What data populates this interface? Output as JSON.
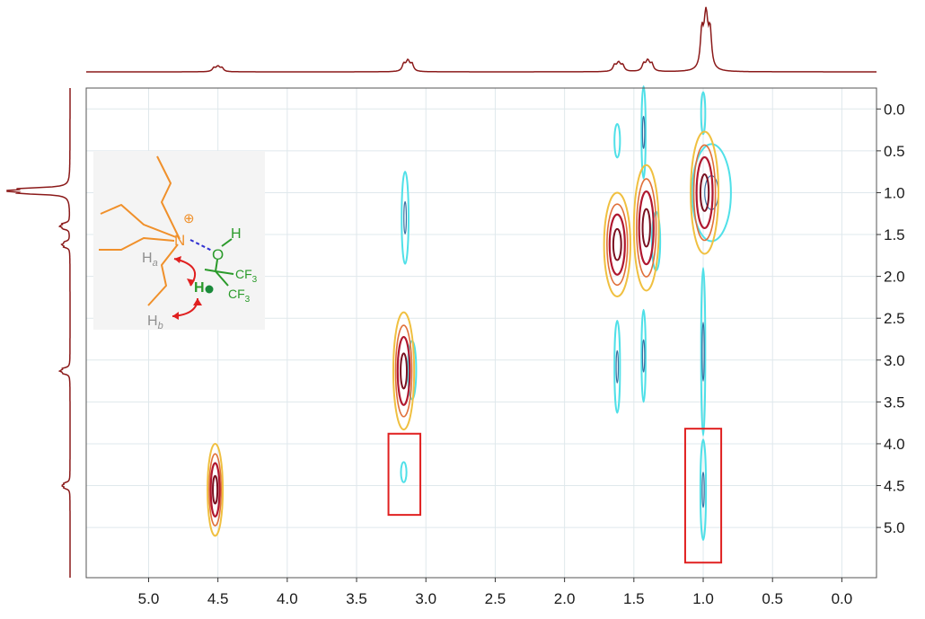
{
  "chart_data": {
    "type": "2D NMR contour plot (NOESY)",
    "title": "",
    "xlabel": "",
    "ylabel": "",
    "x_axis": {
      "reversed": true,
      "range": [
        5.45,
        -0.25
      ],
      "ticks": [
        5.0,
        4.5,
        4.0,
        3.5,
        3.0,
        2.5,
        2.0,
        1.5,
        1.0,
        0.5,
        0.0
      ],
      "tick_labels": [
        "5.0",
        "4.5",
        "4.0",
        "3.5",
        "3.0",
        "2.5",
        "2.0",
        "1.5",
        "1.0",
        "0.5",
        "0.0"
      ]
    },
    "y_axis": {
      "position": "right",
      "range": [
        -0.25,
        5.6
      ],
      "ticks": [
        0.0,
        0.5,
        1.0,
        1.5,
        2.0,
        2.5,
        3.0,
        3.5,
        4.0,
        4.5,
        5.0
      ],
      "tick_labels": [
        "0.0",
        "0.5",
        "1.0",
        "1.5",
        "2.0",
        "2.5",
        "3.0",
        "3.5",
        "4.0",
        "4.5",
        "5.0"
      ]
    },
    "grid": true,
    "projection_1d": {
      "top_peaks_ppm": [
        4.5,
        3.13,
        1.6,
        1.4,
        0.98
      ],
      "left_peaks_ppm": [
        4.5,
        3.13,
        1.6,
        1.4,
        0.98
      ]
    },
    "contours": [
      {
        "x": 4.52,
        "y": 4.55,
        "rx": 0.055,
        "ry": 0.55,
        "sign": "positive"
      },
      {
        "x": 3.16,
        "y": 3.13,
        "rx": 0.075,
        "ry": 0.7,
        "sign": "positive"
      },
      {
        "x": 1.62,
        "y": 1.62,
        "rx": 0.095,
        "ry": 0.62,
        "sign": "positive"
      },
      {
        "x": 1.41,
        "y": 1.42,
        "rx": 0.09,
        "ry": 0.75,
        "sign": "positive"
      },
      {
        "x": 0.99,
        "y": 1.0,
        "rx": 0.1,
        "ry": 0.73,
        "sign": "positive"
      },
      {
        "x": 3.1,
        "y": 3.12,
        "rx": 0.03,
        "ry": 0.35,
        "sign": "negative"
      },
      {
        "x": 3.15,
        "y": 1.3,
        "rx": 0.025,
        "ry": 0.55,
        "sign": "negative"
      },
      {
        "x": 3.16,
        "y": 4.34,
        "rx": 0.02,
        "ry": 0.12,
        "sign": "negative"
      },
      {
        "x": 1.62,
        "y": 0.38,
        "rx": 0.02,
        "ry": 0.2,
        "sign": "negative"
      },
      {
        "x": 1.62,
        "y": 3.08,
        "rx": 0.02,
        "ry": 0.55,
        "sign": "negative"
      },
      {
        "x": 1.43,
        "y": 0.28,
        "rx": 0.015,
        "ry": 0.55,
        "sign": "negative"
      },
      {
        "x": 1.34,
        "y": 1.58,
        "rx": 0.03,
        "ry": 0.35,
        "sign": "negative"
      },
      {
        "x": 1.43,
        "y": 2.95,
        "rx": 0.015,
        "ry": 0.55,
        "sign": "negative"
      },
      {
        "x": 0.94,
        "y": 1.0,
        "rx": 0.14,
        "ry": 0.58,
        "sign": "negative"
      },
      {
        "x": 1.0,
        "y": 0.05,
        "rx": 0.015,
        "ry": 0.25,
        "sign": "negative"
      },
      {
        "x": 1.0,
        "y": 2.9,
        "rx": 0.015,
        "ry": 1.0,
        "sign": "negative"
      },
      {
        "x": 1.0,
        "y": 4.55,
        "rx": 0.02,
        "ry": 0.6,
        "sign": "negative"
      }
    ],
    "highlight_boxes": [
      {
        "x_range": [
          3.27,
          3.04
        ],
        "y_range": [
          3.88,
          4.85
        ]
      },
      {
        "x_range": [
          1.13,
          0.87
        ],
        "y_range": [
          3.82,
          5.42
        ]
      }
    ],
    "inset": {
      "charge": "⊕",
      "atom_N": "N",
      "atom_O": "O",
      "atom_H_OH": "H",
      "group_CF3_a": "CF",
      "group_CF3_b": "CF",
      "subscript_3": "3",
      "atom_H_methine": "H",
      "label_Ha": "H",
      "label_Ha_sub": "a",
      "label_Hb": "H",
      "label_Hb_sub": "b"
    },
    "colors": {
      "projection": "#8b1a1a",
      "positive_outer": "#f0c040",
      "positive_mid": "#e0703a",
      "positive_inner": "#b01830",
      "positive_core": "#7a1020",
      "negative": "#4fe0e8",
      "negative_core": "#3a6fa0",
      "highlight_box": "#e02020",
      "grid": "#dfe8ec",
      "chain": "#f0902a",
      "hfip": "#2a9a2a",
      "hbond": "#3030d0",
      "noe_arrow": "#e02020",
      "proton_label": "#909090",
      "inset_bg": "#f4f4f4"
    }
  }
}
